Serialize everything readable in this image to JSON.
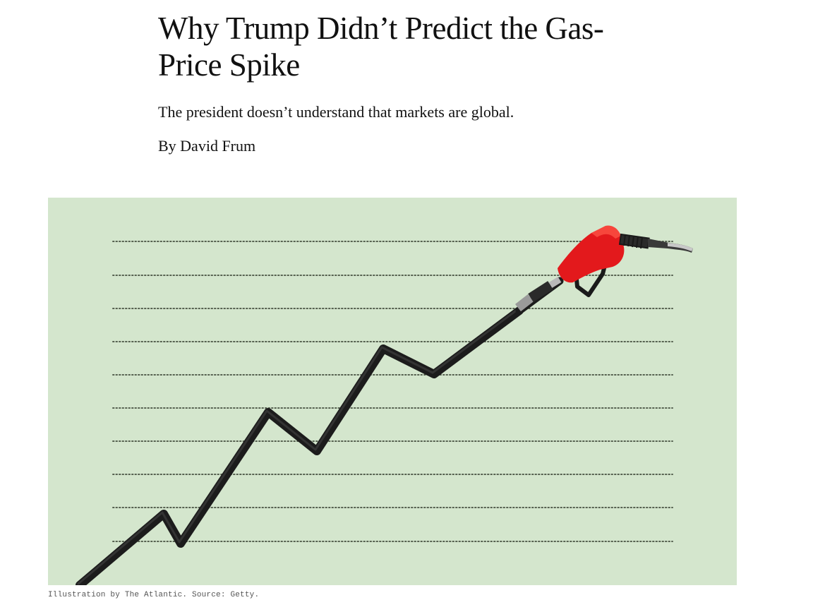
{
  "article": {
    "headline": "Why Trump Didn’t Predict the Gas-Price Spike",
    "dek": "The president doesn’t understand that markets are global.",
    "byline": "By David Frum"
  },
  "illustration": {
    "subject": "gas-pump-nozzle-on-rising-line",
    "background_color": "#d4e6cd",
    "line_color": "#1c1c1c",
    "nozzle_color": "#e3191c",
    "caption": "Illustration by The Atlantic. Source: Getty."
  }
}
